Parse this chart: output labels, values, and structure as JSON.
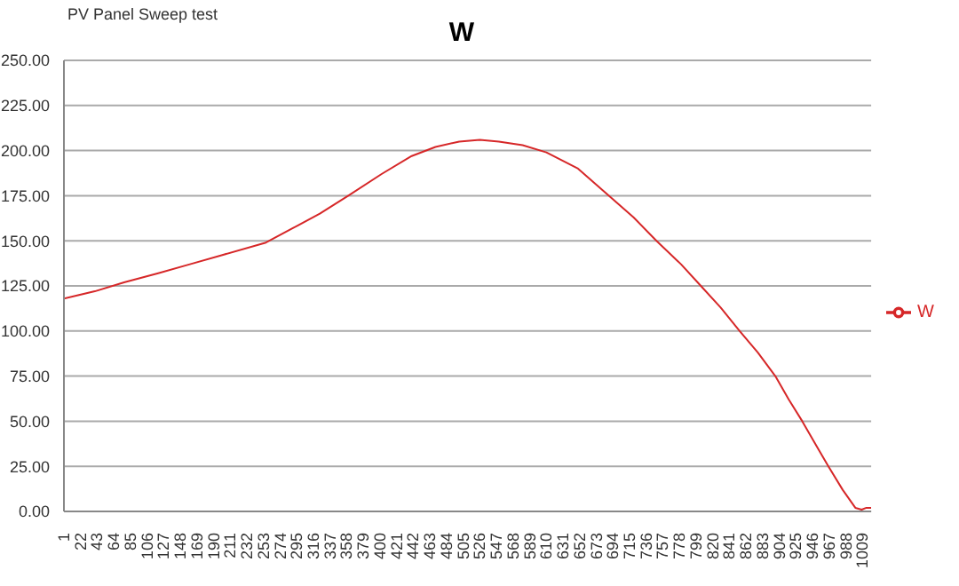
{
  "chart_data": {
    "type": "line",
    "title": "W",
    "subtitle": "PV Panel Sweep test",
    "x": [
      1,
      20,
      40,
      77,
      120,
      160,
      200,
      256,
      290,
      324,
      360,
      402,
      440,
      470,
      500,
      526,
      550,
      580,
      610,
      650,
      689,
      720,
      749,
      780,
      805,
      830,
      854,
      877,
      899,
      916,
      933,
      950,
      966,
      984,
      1000,
      1008,
      1014,
      1020
    ],
    "series": [
      {
        "name": "W",
        "color": "#d62728",
        "values": [
          118,
          120,
          122,
          127,
          132,
          137,
          142,
          149,
          157,
          165,
          175,
          187,
          197,
          202,
          205,
          206,
          205,
          203,
          199,
          190,
          175,
          163,
          150,
          137,
          125,
          113,
          100,
          88,
          75,
          62,
          50,
          37,
          25,
          12,
          2,
          1,
          2,
          2
        ]
      }
    ],
    "xlim": [
      1,
      1020
    ],
    "xticks": [
      1,
      22,
      43,
      64,
      85,
      106,
      127,
      148,
      169,
      190,
      211,
      232,
      253,
      274,
      295,
      316,
      337,
      358,
      379,
      400,
      421,
      442,
      463,
      484,
      505,
      526,
      547,
      568,
      589,
      610,
      631,
      652,
      673,
      694,
      715,
      736,
      757,
      778,
      799,
      820,
      841,
      862,
      883,
      904,
      925,
      946,
      967,
      988,
      1009
    ],
    "ylim": [
      0,
      250
    ],
    "yticks": [
      {
        "value": 0,
        "label": "0.00"
      },
      {
        "value": 25,
        "label": "25.00"
      },
      {
        "value": 50,
        "label": "50.00"
      },
      {
        "value": 75,
        "label": "75.00"
      },
      {
        "value": 100,
        "label": "100.00"
      },
      {
        "value": 125,
        "label": "125.00"
      },
      {
        "value": 150,
        "label": "150.00"
      },
      {
        "value": 175,
        "label": "175.00"
      },
      {
        "value": 200,
        "label": "200.00"
      },
      {
        "value": 225,
        "label": "225.00"
      },
      {
        "value": 250,
        "label": "250.00"
      }
    ],
    "grid": "y",
    "legend": "right",
    "marker": "none",
    "line_style": "solid"
  }
}
